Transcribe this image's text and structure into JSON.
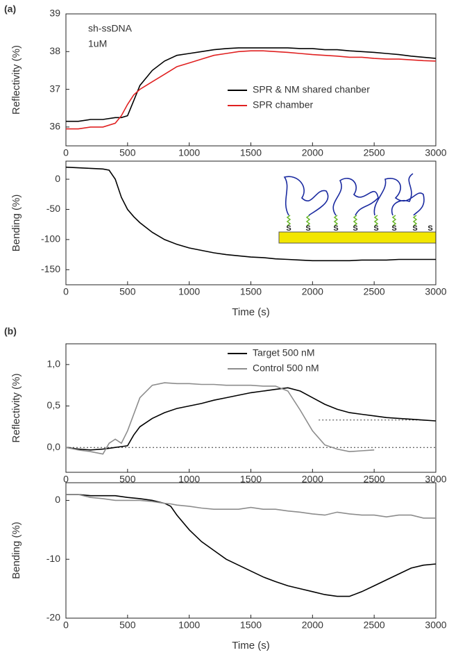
{
  "panel_labels": [
    "(a)",
    "(b)"
  ],
  "chart_data": [
    {
      "type": "line",
      "ylabel": "Reflectivity (%)",
      "annotations": [
        "sh-ssDNA",
        "1uM"
      ],
      "x": [
        0,
        100,
        200,
        300,
        400,
        450,
        500,
        550,
        600,
        700,
        800,
        900,
        1000,
        1100,
        1200,
        1300,
        1400,
        1500,
        1600,
        1700,
        1800,
        1900,
        2000,
        2100,
        2200,
        2300,
        2400,
        2500,
        2600,
        2700,
        2800,
        2900,
        3000
      ],
      "series": [
        {
          "name": "SPR & NM shared chanber",
          "color": "#000000",
          "values": [
            36.15,
            36.15,
            36.2,
            36.2,
            36.25,
            36.25,
            36.3,
            36.7,
            37.1,
            37.5,
            37.75,
            37.9,
            37.95,
            38.0,
            38.05,
            38.08,
            38.1,
            38.1,
            38.1,
            38.1,
            38.1,
            38.08,
            38.08,
            38.05,
            38.05,
            38.02,
            38.0,
            37.98,
            37.95,
            37.92,
            37.88,
            37.85,
            37.82
          ]
        },
        {
          "name": "SPR chamber",
          "color": "#e02020",
          "values": [
            35.95,
            35.95,
            36.0,
            36.0,
            36.1,
            36.3,
            36.6,
            36.85,
            37.0,
            37.2,
            37.4,
            37.6,
            37.7,
            37.8,
            37.9,
            37.95,
            38.0,
            38.02,
            38.02,
            38.0,
            37.98,
            37.95,
            37.92,
            37.9,
            37.88,
            37.85,
            37.85,
            37.82,
            37.8,
            37.8,
            37.78,
            37.76,
            37.75
          ]
        }
      ],
      "xlim": [
        0,
        3000
      ],
      "xticks": [
        0,
        500,
        1000,
        1500,
        2000,
        2500,
        3000
      ],
      "ylim": [
        35.5,
        39
      ],
      "yticks": [
        36,
        37,
        38,
        39
      ],
      "legend": "lower right"
    },
    {
      "type": "line",
      "ylabel": "Bending (%)",
      "xlabel": "Time (s)",
      "inset_labels": [
        "S",
        "S",
        "S",
        "S",
        "S",
        "S",
        "S",
        "S"
      ],
      "x": [
        0,
        100,
        200,
        300,
        350,
        400,
        450,
        500,
        550,
        600,
        700,
        800,
        900,
        1000,
        1100,
        1200,
        1300,
        1400,
        1500,
        1600,
        1700,
        1800,
        1900,
        2000,
        2100,
        2200,
        2300,
        2400,
        2500,
        2600,
        2700,
        2800,
        2900,
        3000
      ],
      "series": [
        {
          "color": "#000000",
          "values": [
            20,
            19,
            18,
            17,
            15,
            0,
            -30,
            -50,
            -62,
            -72,
            -88,
            -100,
            -108,
            -114,
            -118,
            -122,
            -125,
            -127,
            -129,
            -130,
            -132,
            -133,
            -134,
            -135,
            -135,
            -135,
            -135,
            -134,
            -134,
            -134,
            -133,
            -133,
            -133,
            -133
          ]
        }
      ],
      "xlim": [
        0,
        3000
      ],
      "xticks": [
        0,
        500,
        1000,
        1500,
        2000,
        2500,
        3000
      ],
      "ylim": [
        -175,
        30
      ],
      "yticks": [
        -150,
        -100,
        -50,
        0
      ]
    },
    {
      "type": "line",
      "ylabel": "Reflectivity (%)",
      "x": [
        0,
        100,
        200,
        300,
        350,
        400,
        450,
        500,
        550,
        600,
        700,
        800,
        900,
        1000,
        1100,
        1200,
        1300,
        1400,
        1500,
        1600,
        1700,
        1800,
        1900,
        2000,
        2100,
        2200,
        2300,
        2400,
        2500,
        2600,
        2700,
        2800,
        2900,
        3000
      ],
      "series": [
        {
          "name": "Target 500 nM",
          "color": "#000000",
          "values": [
            0,
            -0.02,
            -0.03,
            -0.02,
            -0.01,
            0,
            0.01,
            0.02,
            0.15,
            0.25,
            0.35,
            0.42,
            0.47,
            0.5,
            0.53,
            0.57,
            0.6,
            0.63,
            0.66,
            0.68,
            0.7,
            0.72,
            0.68,
            0.6,
            0.52,
            0.46,
            0.42,
            0.4,
            0.38,
            0.36,
            0.35,
            0.34,
            0.33,
            0.32
          ]
        },
        {
          "name": "Control 500 nM",
          "color": "#8c8c8c",
          "values": [
            0,
            -0.03,
            -0.05,
            -0.08,
            0.05,
            0.1,
            0.05,
            0.2,
            0.4,
            0.6,
            0.75,
            0.78,
            0.77,
            0.77,
            0.76,
            0.76,
            0.75,
            0.75,
            0.75,
            0.74,
            0.74,
            0.68,
            0.45,
            0.2,
            0.03,
            -0.02,
            -0.05,
            -0.04,
            -0.03,
            null,
            null,
            null,
            null,
            null
          ]
        }
      ],
      "reference_lines": [
        {
          "y": 0,
          "x": [
            0,
            3000
          ]
        },
        {
          "y": 0.33,
          "x": [
            2050,
            2900
          ]
        }
      ],
      "xlim": [
        0,
        3000
      ],
      "xticks": [
        0,
        500,
        1000,
        1500,
        2000,
        2500,
        3000
      ],
      "ylim": [
        -0.3,
        1.25
      ],
      "yticks": [
        {
          "value": 0,
          "label": "0,0"
        },
        {
          "value": 0.5,
          "label": "0,5"
        },
        {
          "value": 1,
          "label": "1,0"
        }
      ],
      "legend": "upper right"
    },
    {
      "type": "line",
      "ylabel": "Bending (%)",
      "xlabel": "Time (s)",
      "x": [
        0,
        100,
        200,
        300,
        400,
        500,
        600,
        700,
        800,
        850,
        900,
        1000,
        1100,
        1200,
        1300,
        1400,
        1500,
        1600,
        1700,
        1800,
        1900,
        2000,
        2100,
        2200,
        2300,
        2400,
        2500,
        2600,
        2700,
        2800,
        2900,
        3000
      ],
      "series": [
        {
          "color": "#000000",
          "values": [
            1,
            1,
            0.8,
            0.8,
            0.8,
            0.5,
            0.3,
            0,
            -0.5,
            -1,
            -2.5,
            -5,
            -7,
            -8.5,
            -10,
            -11,
            -12,
            -13,
            -13.8,
            -14.5,
            -15,
            -15.5,
            -16,
            -16.3,
            -16.3,
            -15.5,
            -14.5,
            -13.5,
            -12.5,
            -11.5,
            -11,
            -10.8
          ]
        },
        {
          "color": "#8c8c8c",
          "values": [
            1,
            1,
            0.5,
            0.3,
            0,
            0,
            0,
            -0.2,
            -0.5,
            -0.6,
            -0.8,
            -1,
            -1.3,
            -1.5,
            -1.5,
            -1.5,
            -1.2,
            -1.5,
            -1.5,
            -1.8,
            -2,
            -2.3,
            -2.5,
            -2,
            -2.3,
            -2.5,
            -2.5,
            -2.8,
            -2.5,
            -2.5,
            -3,
            -3
          ]
        }
      ],
      "xlim": [
        0,
        3000
      ],
      "xticks": [
        0,
        500,
        1000,
        1500,
        2000,
        2500,
        3000
      ],
      "ylim": [
        -20,
        3
      ],
      "yticks": [
        -20,
        -10,
        0
      ]
    }
  ]
}
